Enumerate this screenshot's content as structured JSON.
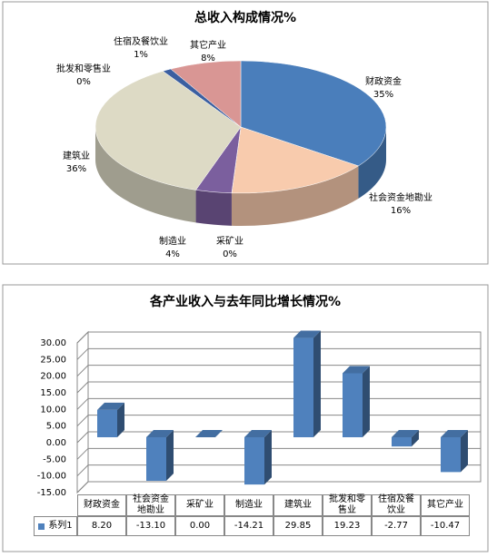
{
  "chart_data": [
    {
      "type": "pie",
      "title": "总收入构成情况%",
      "categories": [
        "财政资金",
        "社会资金地勘业",
        "采矿业",
        "制造业",
        "建筑业",
        "批发和零售业",
        "住宿及餐饮业",
        "其它产业"
      ],
      "values": [
        35,
        16,
        0,
        4,
        36,
        0,
        1,
        8
      ],
      "value_labels": [
        "35%",
        "16%",
        "0%",
        "4%",
        "36%",
        "0%",
        "1%",
        "8%"
      ],
      "colors": [
        "#4a7ebb",
        "#f8cbad",
        "#9bbb59",
        "#7b5f9e",
        "#dddac5",
        "#f79646",
        "#3b5fa0",
        "#d99694"
      ]
    },
    {
      "type": "bar",
      "title": "各产业收入与去年同比增长情况%",
      "categories": [
        "财政资金",
        "社会资金地勘业",
        "采矿业",
        "制造业",
        "建筑业",
        "批发和零售业",
        "住宿及餐饮业",
        "其它产业"
      ],
      "series": [
        {
          "name": "系列1",
          "color": "#4f81bd",
          "values": [
            8.2,
            -13.1,
            0,
            -14.21,
            29.85,
            19.23,
            -2.77,
            -10.47
          ],
          "value_labels": [
            "8.20",
            "-13.10",
            "0.00",
            "-14.21",
            "29.85",
            "19.23",
            "-2.77",
            "-10.47"
          ]
        }
      ],
      "ylim": [
        -15,
        30
      ],
      "yticks": [
        {
          "value": -15,
          "label": "-15.00"
        },
        {
          "value": -10,
          "label": "-10.00"
        },
        {
          "value": -5,
          "label": "-5.00"
        },
        {
          "value": 0,
          "label": "0.00"
        },
        {
          "value": 5,
          "label": "5.00"
        },
        {
          "value": 10,
          "label": "10.00"
        },
        {
          "value": 15,
          "label": "15.00"
        },
        {
          "value": 20,
          "label": "20.00"
        },
        {
          "value": 25,
          "label": "25.00"
        },
        {
          "value": 30,
          "label": "30.00"
        }
      ],
      "grid": true
    }
  ]
}
